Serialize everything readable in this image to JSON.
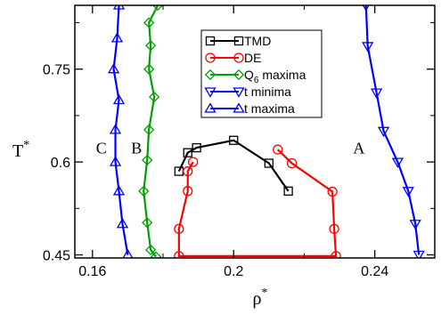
{
  "chart_data": {
    "type": "line",
    "xlabel": "ρ",
    "xlabel_sup": "*",
    "ylabel": "T",
    "ylabel_sup": "*",
    "xlim": [
      0.155,
      0.257
    ],
    "ylim": [
      0.445,
      0.853
    ],
    "xticks": [
      0.16,
      0.2,
      0.24
    ],
    "xtick_labels": [
      "0.16",
      "0.2",
      "0.24"
    ],
    "yticks": [
      0.45,
      0.6,
      0.75
    ],
    "ytick_labels": [
      "0.45",
      "0.6",
      "0.75"
    ],
    "legend_position": "top-center",
    "series": [
      {
        "name": "TMD",
        "color": "#000000",
        "marker": "square",
        "points": [
          [
            0.1845,
            0.585
          ],
          [
            0.187,
            0.615
          ],
          [
            0.1895,
            0.623
          ],
          [
            0.2,
            0.635
          ],
          [
            0.21,
            0.598
          ],
          [
            0.2155,
            0.553
          ]
        ]
      },
      {
        "name": "DE",
        "color": "#ff0000",
        "marker": "circle",
        "points": [
          [
            0.2125,
            0.62
          ],
          [
            0.2165,
            0.598
          ],
          [
            0.228,
            0.552
          ],
          [
            0.2285,
            0.492
          ],
          [
            0.229,
            0.448
          ],
          [
            0.1845,
            0.448
          ],
          [
            0.1845,
            0.492
          ],
          [
            0.187,
            0.553
          ],
          [
            0.187,
            0.585
          ],
          [
            0.1885,
            0.6
          ]
        ]
      },
      {
        "name": "Q",
        "name_sub": "6",
        "name_rest": " maxima",
        "color": "#00a000",
        "marker": "diamond",
        "points": [
          [
            0.1785,
            0.853
          ],
          [
            0.176,
            0.825
          ],
          [
            0.1765,
            0.788
          ],
          [
            0.176,
            0.75
          ],
          [
            0.1775,
            0.705
          ],
          [
            0.176,
            0.652
          ],
          [
            0.1755,
            0.603
          ],
          [
            0.1745,
            0.553
          ],
          [
            0.1755,
            0.502
          ],
          [
            0.1765,
            0.458
          ],
          [
            0.178,
            0.447
          ]
        ]
      },
      {
        "name": "t minima",
        "color": "#0000ff",
        "marker": "triangle-down",
        "points": [
          [
            0.2375,
            0.853
          ],
          [
            0.238,
            0.787
          ],
          [
            0.2405,
            0.712
          ],
          [
            0.2425,
            0.65
          ],
          [
            0.2465,
            0.6
          ],
          [
            0.2495,
            0.553
          ],
          [
            0.2515,
            0.5
          ],
          [
            0.2525,
            0.45
          ]
        ]
      },
      {
        "name": "t maxima",
        "color": "#0000ff",
        "marker": "triangle-up",
        "points": [
          [
            0.1675,
            0.853
          ],
          [
            0.167,
            0.8
          ],
          [
            0.166,
            0.75
          ],
          [
            0.1675,
            0.7
          ],
          [
            0.1665,
            0.652
          ],
          [
            0.1665,
            0.6
          ],
          [
            0.1675,
            0.553
          ],
          [
            0.1685,
            0.5
          ],
          [
            0.17,
            0.45
          ]
        ]
      }
    ],
    "annotations": [
      {
        "text": "A",
        "x": 0.2355,
        "y": 0.614
      },
      {
        "text": "B",
        "x": 0.1725,
        "y": 0.614
      },
      {
        "text": "C",
        "x": 0.1625,
        "y": 0.614
      }
    ]
  }
}
